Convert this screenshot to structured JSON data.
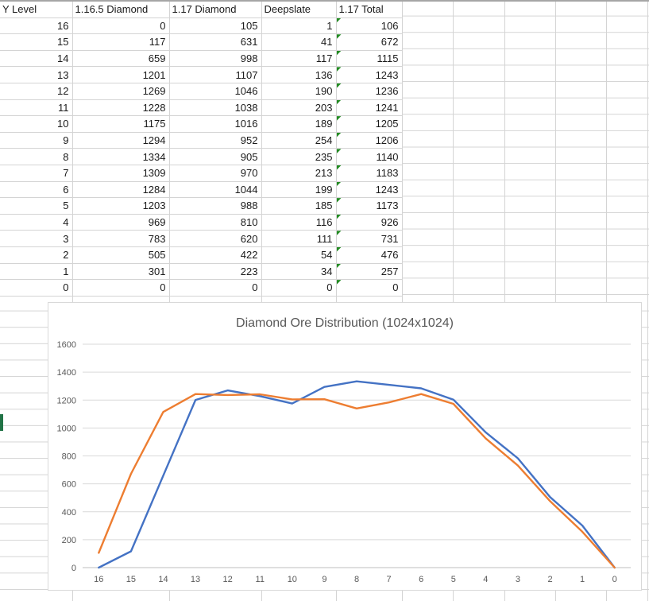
{
  "sheet": {
    "table": {
      "headers": [
        "Y Level",
        "1.16.5 Diamond",
        "1.17 Diamond",
        "Deepslate",
        "1.17 Total"
      ],
      "rows": [
        [
          16,
          0,
          105,
          1,
          106
        ],
        [
          15,
          117,
          631,
          41,
          672
        ],
        [
          14,
          659,
          998,
          117,
          1115
        ],
        [
          13,
          1201,
          1107,
          136,
          1243
        ],
        [
          12,
          1269,
          1046,
          190,
          1236
        ],
        [
          11,
          1228,
          1038,
          203,
          1241
        ],
        [
          10,
          1175,
          1016,
          189,
          1205
        ],
        [
          9,
          1294,
          952,
          254,
          1206
        ],
        [
          8,
          1334,
          905,
          235,
          1140
        ],
        [
          7,
          1309,
          970,
          213,
          1183
        ],
        [
          6,
          1284,
          1044,
          199,
          1243
        ],
        [
          5,
          1203,
          988,
          185,
          1173
        ],
        [
          4,
          969,
          810,
          116,
          926
        ],
        [
          3,
          783,
          620,
          111,
          731
        ],
        [
          2,
          505,
          422,
          54,
          476
        ],
        [
          1,
          301,
          223,
          34,
          257
        ],
        [
          0,
          0,
          0,
          0,
          0
        ]
      ],
      "error_flag_column": "1.17 Total"
    },
    "gridline_color": "#d4d4d4",
    "error_indicator_color": "#228B22",
    "selection_marker_color": "#217346"
  },
  "chart_data": {
    "type": "line",
    "title": "Diamond Ore Distribution (1024x1024)",
    "categories": [
      16,
      15,
      14,
      13,
      12,
      11,
      10,
      9,
      8,
      7,
      6,
      5,
      4,
      3,
      2,
      1,
      0
    ],
    "series": [
      {
        "name": "1.16.5 Diamond",
        "color": "#4472C4",
        "values": [
          0,
          117,
          659,
          1201,
          1269,
          1228,
          1175,
          1294,
          1334,
          1309,
          1284,
          1203,
          969,
          783,
          505,
          301,
          0
        ]
      },
      {
        "name": "1.17 Total",
        "color": "#ED7D31",
        "values": [
          106,
          672,
          1115,
          1243,
          1236,
          1241,
          1205,
          1206,
          1140,
          1183,
          1243,
          1173,
          926,
          731,
          476,
          257,
          0
        ]
      }
    ],
    "xlabel": "",
    "ylabel": "",
    "ylim": [
      0,
      1600
    ],
    "yticks": [
      0,
      200,
      400,
      600,
      800,
      1000,
      1200,
      1400,
      1600
    ],
    "grid": true,
    "legend": "none",
    "title_color": "#595959",
    "tick_color": "#595959",
    "gridline_color": "#d9d9d9",
    "axis_line_color": "#bfbfbf"
  }
}
